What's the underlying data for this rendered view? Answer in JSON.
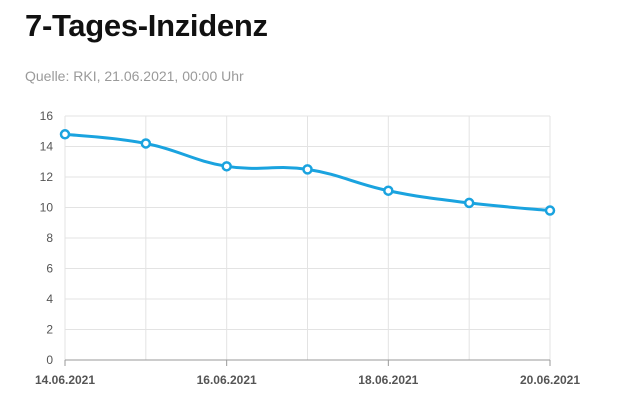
{
  "header": {
    "title": "7-Tages-Inzidenz",
    "source": "Quelle: RKI, 21.06.2021, 00:00 Uhr"
  },
  "colors": {
    "line": "#1aa3df",
    "grid": "#e3e3e3",
    "axis": "#999999"
  },
  "chart_data": {
    "type": "line",
    "title": "7-Tages-Inzidenz",
    "subtitle": "Quelle: RKI, 21.06.2021, 00:00 Uhr",
    "xlabel": "",
    "ylabel": "",
    "x": [
      "14.06.2021",
      "15.06.2021",
      "16.06.2021",
      "17.06.2021",
      "18.06.2021",
      "19.06.2021",
      "20.06.2021"
    ],
    "x_tick_labels": [
      "14.06.2021",
      "16.06.2021",
      "18.06.2021",
      "20.06.2021"
    ],
    "series": [
      {
        "values": [
          14.8,
          14.2,
          12.7,
          12.5,
          11.1,
          10.3,
          9.8
        ]
      }
    ],
    "ylim": [
      0,
      16
    ],
    "y_ticks": [
      0,
      2,
      4,
      6,
      8,
      10,
      12,
      14,
      16
    ],
    "grid": true,
    "legend": "none",
    "curve": "smooth"
  }
}
